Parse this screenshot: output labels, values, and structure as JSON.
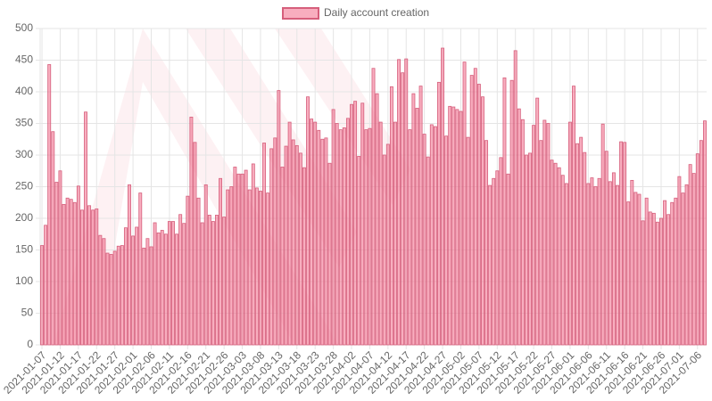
{
  "chart_data": {
    "type": "bar",
    "series": [
      {
        "name": "Daily account creation",
        "color": "rgba(244,120,148,0.6)",
        "border_color": "#d65f7c",
        "values": [
          157,
          189,
          443,
          337,
          257,
          275,
          222,
          232,
          230,
          225,
          251,
          213,
          368,
          220,
          213,
          215,
          173,
          168,
          145,
          143,
          148,
          156,
          157,
          185,
          253,
          172,
          186,
          240,
          153,
          168,
          155,
          193,
          177,
          181,
          175,
          195,
          195,
          175,
          206,
          192,
          235,
          360,
          320,
          232,
          193,
          253,
          205,
          195,
          205,
          263,
          202,
          245,
          250,
          281,
          270,
          270,
          276,
          245,
          286,
          248,
          243,
          319,
          240,
          310,
          327,
          402,
          281,
          314,
          352,
          324,
          315,
          303,
          280,
          392,
          357,
          352,
          339,
          325,
          327,
          287,
          372,
          350,
          340,
          343,
          358,
          380,
          385,
          298,
          382,
          340,
          342,
          437,
          397,
          352,
          300,
          317,
          408,
          352,
          451,
          430,
          452,
          340,
          397,
          374,
          409,
          333,
          297,
          348,
          345,
          415,
          469,
          330,
          377,
          376,
          372,
          369,
          447,
          328,
          426,
          437,
          412,
          392,
          323,
          252,
          263,
          275,
          296,
          422,
          270,
          418,
          465,
          373,
          356,
          300,
          303,
          347,
          390,
          323,
          355,
          350,
          292,
          287,
          280,
          268,
          255,
          352,
          409,
          318,
          328,
          304,
          255,
          264,
          250,
          263,
          349,
          306,
          258,
          272,
          252,
          321,
          320,
          226,
          260,
          241,
          238,
          196,
          232,
          210,
          208,
          194,
          200,
          228,
          206,
          225,
          232,
          266,
          240,
          253,
          285,
          271,
          302,
          323,
          354
        ]
      }
    ],
    "categories": [
      "2021-01-07",
      null,
      null,
      null,
      null,
      "2021-01-12",
      null,
      null,
      null,
      null,
      "2021-01-17",
      null,
      null,
      null,
      null,
      "2021-01-22",
      null,
      null,
      null,
      null,
      "2021-01-27",
      null,
      null,
      null,
      null,
      "2021-02-01",
      null,
      null,
      null,
      null,
      "2021-02-06",
      null,
      null,
      null,
      null,
      "2021-02-11",
      null,
      null,
      null,
      null,
      "2021-02-16",
      null,
      null,
      null,
      null,
      "2021-02-21",
      null,
      null,
      null,
      null,
      "2021-02-26",
      null,
      null,
      null,
      null,
      "2021-03-03",
      null,
      null,
      null,
      null,
      "2021-03-08",
      null,
      null,
      null,
      null,
      "2021-03-13",
      null,
      null,
      null,
      null,
      "2021-03-18",
      null,
      null,
      null,
      null,
      "2021-03-23",
      null,
      null,
      null,
      null,
      "2021-03-28",
      null,
      null,
      null,
      null,
      "2021-04-02",
      null,
      null,
      null,
      null,
      "2021-04-07",
      null,
      null,
      null,
      null,
      "2021-04-12",
      null,
      null,
      null,
      null,
      "2021-04-17",
      null,
      null,
      null,
      null,
      "2021-04-22",
      null,
      null,
      null,
      null,
      "2021-04-27",
      null,
      null,
      null,
      null,
      "2021-05-02",
      null,
      null,
      null,
      null,
      "2021-05-07",
      null,
      null,
      null,
      null,
      "2021-05-12",
      null,
      null,
      null,
      null,
      "2021-05-17",
      null,
      null,
      null,
      null,
      "2021-05-22",
      null,
      null,
      null,
      null,
      "2021-05-27",
      null,
      null,
      null,
      null,
      "2021-06-01",
      null,
      null,
      null,
      null,
      "2021-06-06",
      null,
      null,
      null,
      null,
      "2021-06-11",
      null,
      null,
      null,
      null,
      "2021-06-16",
      null,
      null,
      null,
      null,
      "2021-06-21",
      null,
      null,
      null,
      null,
      "2021-06-26",
      null,
      null,
      null,
      null,
      "2021-07-01",
      null,
      null,
      null,
      null,
      "2021-07-06",
      null,
      null
    ],
    "ylim": [
      0,
      500
    ],
    "yticks": [
      0,
      50,
      100,
      150,
      200,
      250,
      300,
      350,
      400,
      450,
      500
    ],
    "grid": true,
    "legend": "top"
  }
}
